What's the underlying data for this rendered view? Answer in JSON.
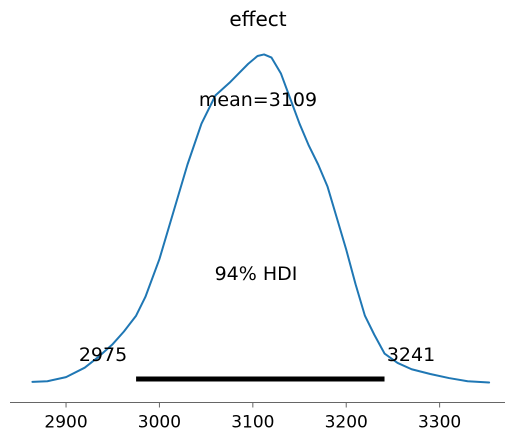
{
  "chart_data": {
    "type": "area",
    "title": "effect",
    "xlabel": "",
    "ylabel": "",
    "xlim": [
      2840,
      3370
    ],
    "ylim": [
      0,
      1.08
    ],
    "x_ticks": [
      2900,
      3000,
      3100,
      3200,
      3300
    ],
    "grid": false,
    "legend": "none",
    "series": [
      {
        "color": "#1f77b4",
        "x": [
          2864,
          2880,
          2900,
          2920,
          2935,
          2950,
          2962,
          2975,
          2985,
          3000,
          3015,
          3030,
          3045,
          3060,
          3075,
          3085,
          3095,
          3105,
          3112,
          3120,
          3130,
          3140,
          3150,
          3160,
          3170,
          3180,
          3190,
          3200,
          3210,
          3220,
          3230,
          3241,
          3255,
          3270,
          3290,
          3310,
          3330,
          3353
        ],
        "y": [
          0.01,
          0.012,
          0.025,
          0.055,
          0.09,
          0.13,
          0.17,
          0.22,
          0.28,
          0.4,
          0.55,
          0.7,
          0.83,
          0.92,
          0.96,
          0.99,
          1.02,
          1.045,
          1.05,
          1.04,
          0.99,
          0.91,
          0.83,
          0.76,
          0.7,
          0.63,
          0.53,
          0.43,
          0.32,
          0.22,
          0.16,
          0.1,
          0.07,
          0.05,
          0.035,
          0.022,
          0.012,
          0.008
        ]
      }
    ],
    "annotations": {
      "mean_label": "mean=3109",
      "hdi_label": "94% HDI",
      "hdi_low_label": "2975",
      "hdi_high_label": "3241",
      "hdi_low": 2975,
      "hdi_high": 3241
    }
  }
}
